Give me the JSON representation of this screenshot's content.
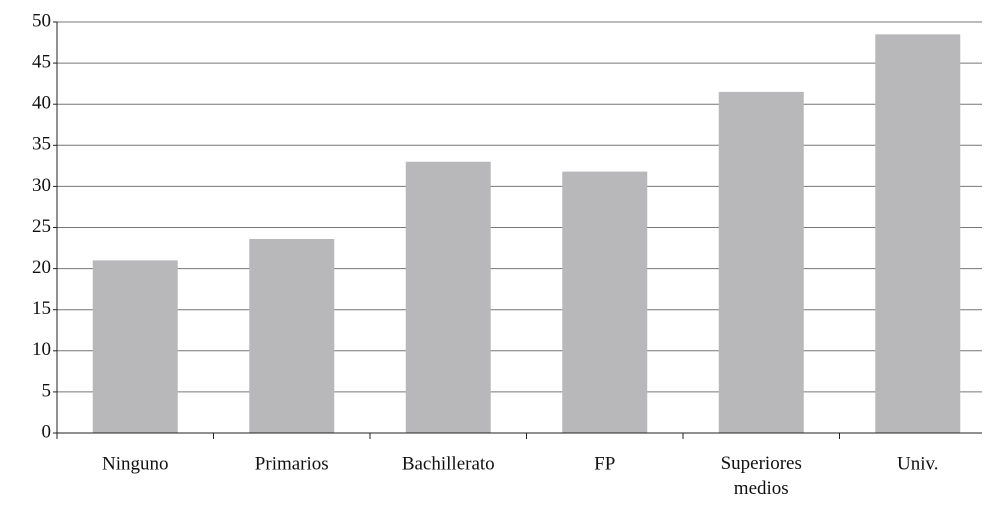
{
  "chart_data": {
    "type": "bar",
    "categories": [
      "Ninguno",
      "Primarios",
      "Bachillerato",
      "FP",
      "Superiores medios",
      "Univ."
    ],
    "values": [
      21,
      23.6,
      33,
      31.8,
      41.5,
      48.5
    ],
    "color": "#b8b8ba",
    "ylim": [
      0,
      50
    ],
    "yticks": [
      0,
      5,
      10,
      15,
      20,
      25,
      30,
      35,
      40,
      45,
      50
    ],
    "grid": true
  }
}
